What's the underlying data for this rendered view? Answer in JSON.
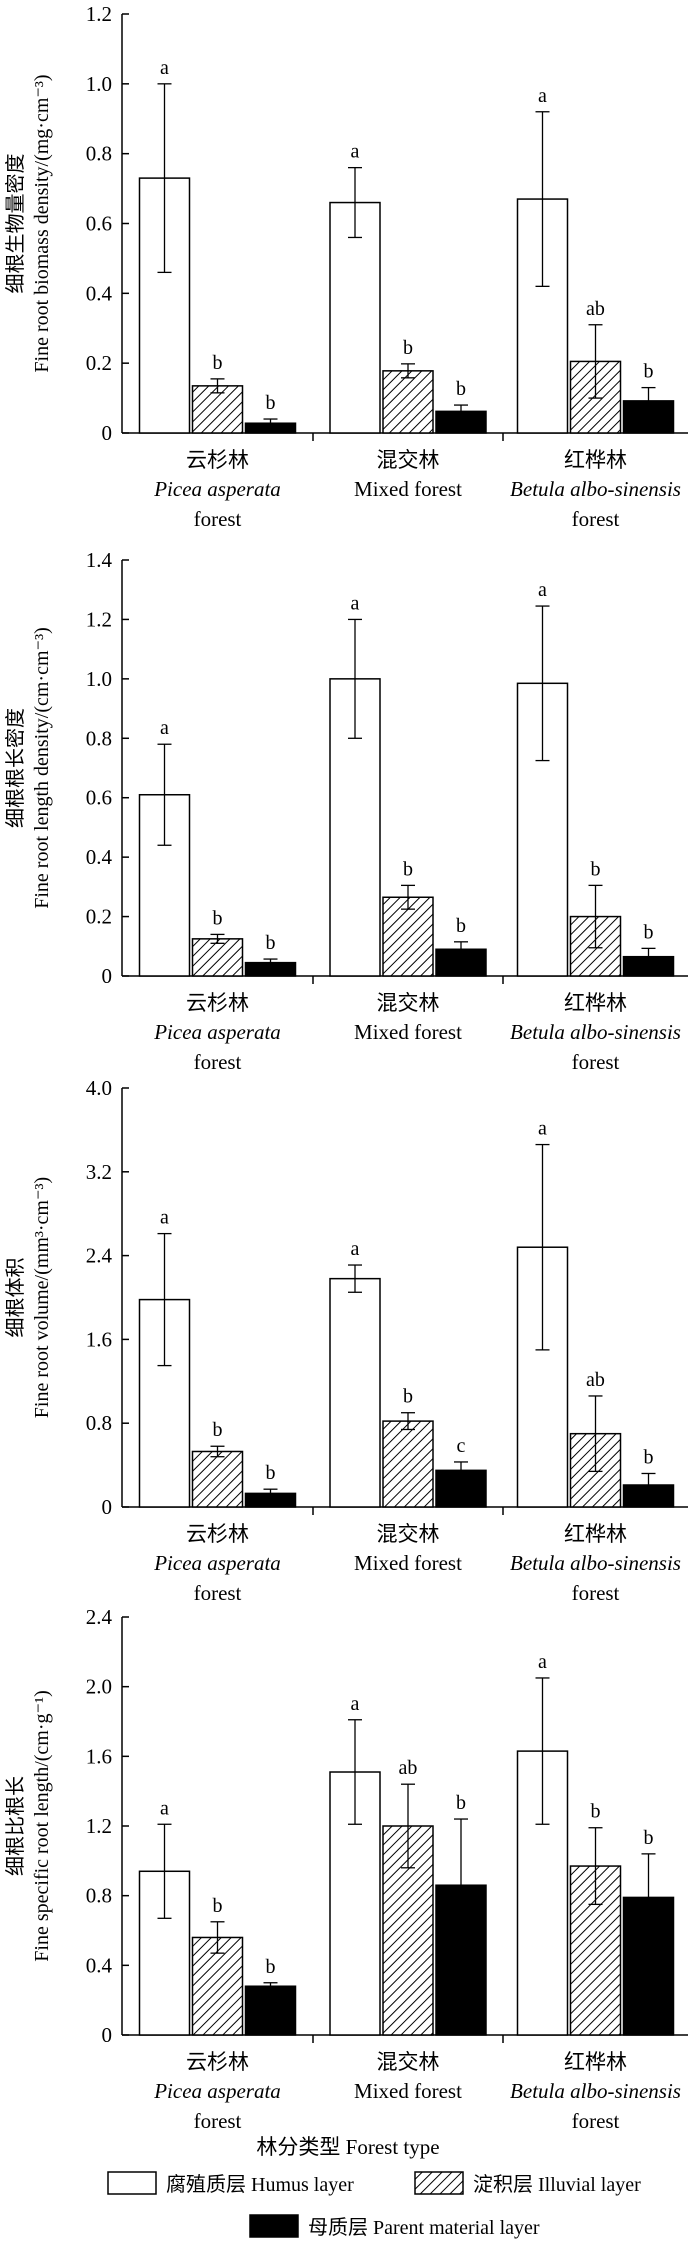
{
  "xlabel_overall": "林分类型 Forest type",
  "legend": {
    "items": [
      {
        "key": "humus",
        "label": "腐殖质层 Humus layer",
        "pattern": "white"
      },
      {
        "key": "illuvial",
        "label": "淀积层 Illuvial layer",
        "pattern": "hatch"
      },
      {
        "key": "parent",
        "label": "母质层 Parent material layer",
        "pattern": "black"
      }
    ]
  },
  "group_labels": [
    {
      "zh": "云杉林",
      "en1": "Picea asperata",
      "en2": "forest"
    },
    {
      "zh": "混交林",
      "en1": "Mixed forest",
      "en2": ""
    },
    {
      "zh": "红桦林",
      "en1": "Betula albo-sinensis",
      "en2": "forest"
    }
  ],
  "colors": {
    "bar_stroke": "#000000",
    "humus_fill": "#ffffff",
    "parent_fill": "#000000"
  },
  "chart_data": [
    {
      "type": "bar",
      "ylabel_zh": "细根生物量密度",
      "ylabel_en": "Fine root biomass density/(mg·cm⁻³)",
      "ylim": [
        0,
        1.2
      ],
      "yticks": [
        "0",
        "0.2",
        "0.4",
        "0.6",
        "0.8",
        "1.0",
        "1.2"
      ],
      "categories": [
        "云杉林",
        "混交林",
        "红桦林"
      ],
      "series": [
        {
          "name": "腐殖质层 Humus layer",
          "values": [
            0.73,
            0.66,
            0.67
          ],
          "errors": [
            0.27,
            0.1,
            0.25
          ],
          "letters": [
            "a",
            "a",
            "a"
          ]
        },
        {
          "name": "淀积层 Illuvial layer",
          "values": [
            0.135,
            0.178,
            0.205
          ],
          "errors": [
            0.02,
            0.02,
            0.105
          ],
          "letters": [
            "b",
            "b",
            "ab"
          ]
        },
        {
          "name": "母质层 Parent material layer",
          "values": [
            0.028,
            0.062,
            0.092
          ],
          "errors": [
            0.012,
            0.018,
            0.038
          ],
          "letters": [
            "b",
            "b",
            "b"
          ]
        }
      ]
    },
    {
      "type": "bar",
      "ylabel_zh": "细根根长密度",
      "ylabel_en": "Fine root length density/(cm·cm⁻³)",
      "ylim": [
        0,
        1.4
      ],
      "yticks": [
        "0",
        "0.2",
        "0.4",
        "0.6",
        "0.8",
        "1.0",
        "1.2",
        "1.4"
      ],
      "categories": [
        "云杉林",
        "混交林",
        "红桦林"
      ],
      "series": [
        {
          "name": "腐殖质层 Humus layer",
          "values": [
            0.61,
            1.0,
            0.985
          ],
          "errors": [
            0.17,
            0.2,
            0.26
          ],
          "letters": [
            "a",
            "a",
            "a"
          ]
        },
        {
          "name": "淀积层 Illuvial layer",
          "values": [
            0.125,
            0.265,
            0.2
          ],
          "errors": [
            0.015,
            0.04,
            0.105
          ],
          "letters": [
            "b",
            "b",
            "b"
          ]
        },
        {
          "name": "母质层 Parent material layer",
          "values": [
            0.045,
            0.09,
            0.065
          ],
          "errors": [
            0.012,
            0.025,
            0.028
          ],
          "letters": [
            "b",
            "b",
            "b"
          ]
        }
      ]
    },
    {
      "type": "bar",
      "ylabel_zh": "细根体积",
      "ylabel_en": "Fine root volume/(mm³·cm⁻³)",
      "ylim": [
        0,
        4.0
      ],
      "yticks": [
        "0",
        "0.8",
        "1.6",
        "2.4",
        "3.2",
        "4.0"
      ],
      "categories": [
        "云杉林",
        "混交林",
        "红桦林"
      ],
      "series": [
        {
          "name": "腐殖质层 Humus layer",
          "values": [
            1.98,
            2.18,
            2.48
          ],
          "errors": [
            0.63,
            0.13,
            0.98
          ],
          "letters": [
            "a",
            "a",
            "a"
          ]
        },
        {
          "name": "淀积层 Illuvial layer",
          "values": [
            0.53,
            0.82,
            0.7
          ],
          "errors": [
            0.05,
            0.08,
            0.36
          ],
          "letters": [
            "b",
            "b",
            "ab"
          ]
        },
        {
          "name": "母质层 Parent material layer",
          "values": [
            0.13,
            0.35,
            0.21
          ],
          "errors": [
            0.04,
            0.08,
            0.11
          ],
          "letters": [
            "b",
            "c",
            "b"
          ]
        }
      ]
    },
    {
      "type": "bar",
      "ylabel_zh": "细根比根长",
      "ylabel_en": "Fine specific root length/(cm·g⁻¹)",
      "ylim": [
        0,
        2.4
      ],
      "yticks": [
        "0",
        "0.4",
        "0.8",
        "1.2",
        "1.6",
        "2.0",
        "2.4"
      ],
      "categories": [
        "云杉林",
        "混交林",
        "红桦林"
      ],
      "series": [
        {
          "name": "腐殖质层 Humus layer",
          "values": [
            0.94,
            1.51,
            1.63
          ],
          "errors": [
            0.27,
            0.3,
            0.42
          ],
          "letters": [
            "a",
            "a",
            "a"
          ]
        },
        {
          "name": "淀积层 Illuvial layer",
          "values": [
            0.56,
            1.2,
            0.97
          ],
          "errors": [
            0.09,
            0.24,
            0.22
          ],
          "letters": [
            "b",
            "ab",
            "b"
          ]
        },
        {
          "name": "母质层 Parent material layer",
          "values": [
            0.28,
            0.86,
            0.79
          ],
          "errors": [
            0.02,
            0.38,
            0.25
          ],
          "letters": [
            "b",
            "b",
            "b"
          ]
        }
      ]
    }
  ]
}
